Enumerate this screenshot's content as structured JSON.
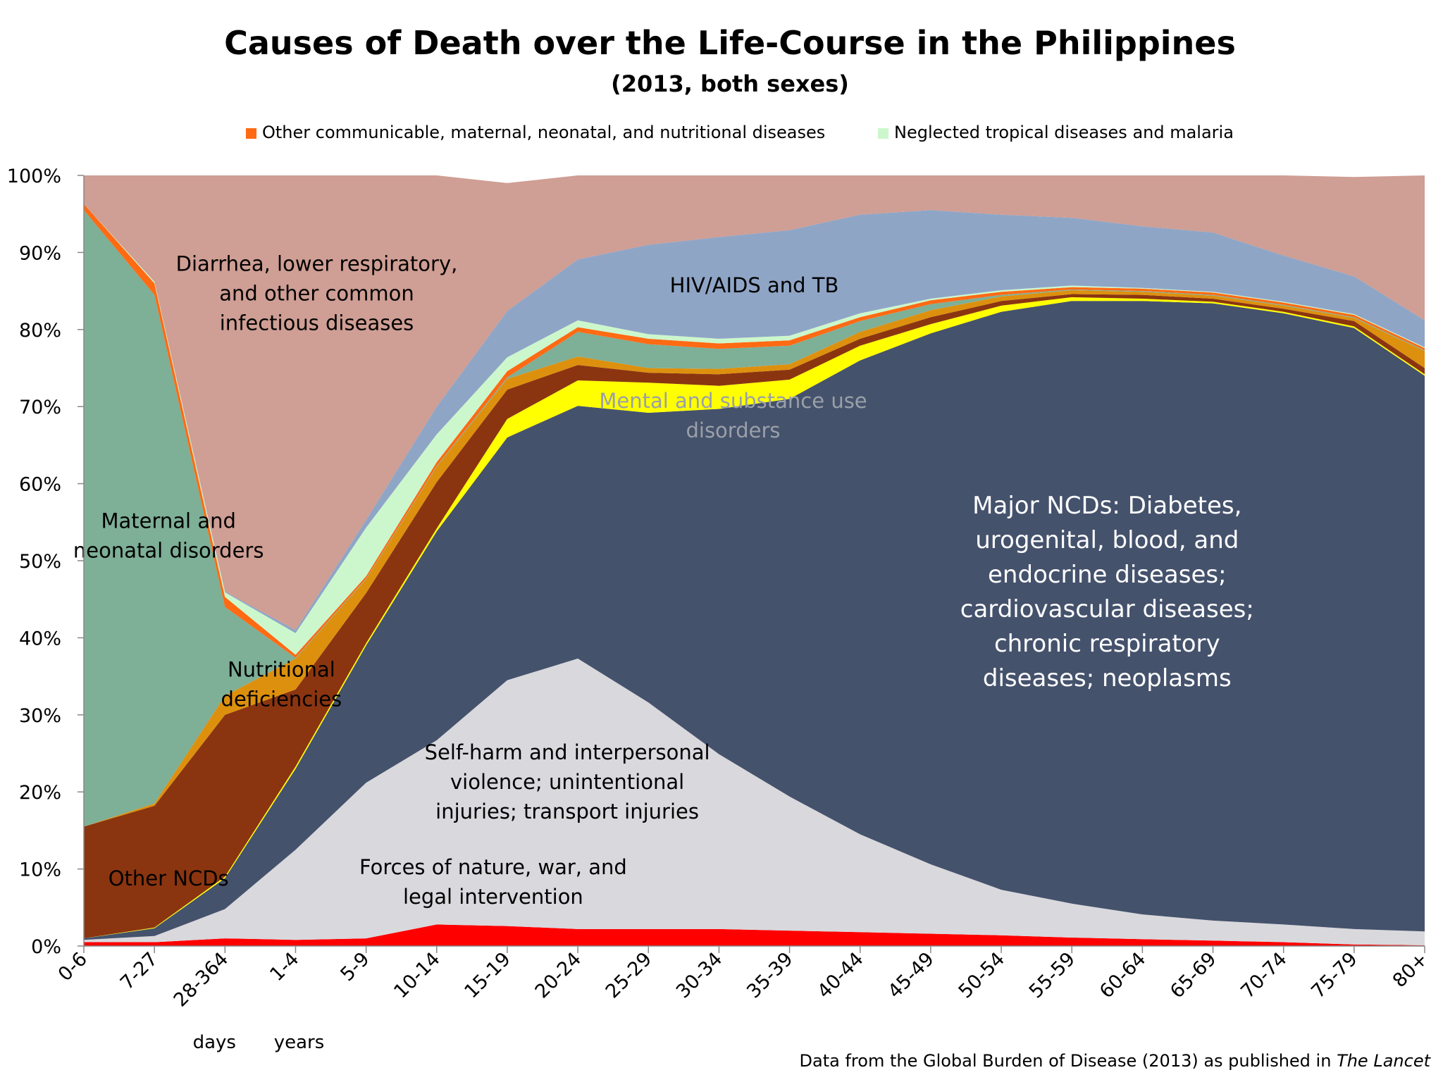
{
  "chart_data": {
    "type": "area",
    "stacked": true,
    "normalized": true,
    "title": "Causes of Death over the Life-Course in the Philippines",
    "subtitle": "(2013, both sexes)",
    "source_prefix": "Data from the Global Burden of Disease (2013) as published in ",
    "source_italic": "The Lancet",
    "categories": [
      "0-6",
      "7-27",
      "28-364",
      "1-4",
      "5-9",
      "10-14",
      "15-19",
      "20-24",
      "25-29",
      "30-34",
      "35-39",
      "40-44",
      "45-49",
      "50-54",
      "55-59",
      "60-64",
      "65-69",
      "70-74",
      "75-79",
      "80+"
    ],
    "category_notes": [
      {
        "text": "days",
        "category": "28-364"
      },
      {
        "text": "years",
        "category": "1-4"
      }
    ],
    "y_ticks": [
      "0%",
      "10%",
      "20%",
      "30%",
      "40%",
      "50%",
      "60%",
      "70%",
      "80%",
      "90%",
      "100%"
    ],
    "ylim": [
      0,
      100
    ],
    "legend": [
      {
        "label": "Other communicable, maternal, neonatal, and nutritional diseases",
        "color": "#ff6a13"
      },
      {
        "label": "Neglected tropical diseases and malaria",
        "color": "#ccf7cc"
      }
    ],
    "series": [
      {
        "key": "forces",
        "color": "#ff0000",
        "values": [
          0.5,
          0.5,
          1.0,
          0.8,
          1.0,
          2.8,
          2.6,
          2.2,
          2.2,
          2.2,
          2.0,
          1.8,
          1.6,
          1.4,
          1.1,
          0.9,
          0.7,
          0.5,
          0.2,
          0.1
        ]
      },
      {
        "key": "injuries",
        "color": "#d9d8dc",
        "values": [
          0.3,
          0.8,
          3.8,
          11.7,
          20.2,
          23.9,
          31.9,
          35.1,
          29.4,
          22.7,
          17.4,
          12.7,
          9.0,
          5.9,
          4.4,
          3.2,
          2.6,
          2.3,
          2.0,
          1.8
        ]
      },
      {
        "key": "major_ncds",
        "color": "#45526c",
        "values": [
          0.2,
          1.0,
          4.0,
          10.5,
          17.8,
          27.1,
          31.5,
          32.8,
          37.6,
          44.8,
          51.6,
          61.5,
          68.9,
          75.0,
          78.2,
          79.6,
          80.1,
          79.3,
          78.0,
          72.1
        ]
      },
      {
        "key": "mental",
        "color": "#ffff00",
        "values": [
          0.0,
          0.1,
          0.2,
          0.3,
          0.3,
          0.4,
          2.4,
          3.3,
          3.9,
          3.0,
          2.5,
          1.9,
          1.2,
          0.8,
          0.5,
          0.3,
          0.2,
          0.2,
          0.2,
          0.2
        ]
      },
      {
        "key": "other_ncds",
        "color": "#8b3510",
        "values": [
          14.5,
          15.8,
          21.0,
          10.0,
          6.5,
          6.0,
          3.8,
          2.0,
          1.3,
          1.5,
          1.3,
          0.9,
          0.9,
          0.6,
          0.4,
          0.5,
          0.4,
          0.4,
          0.7,
          0.8
        ]
      },
      {
        "key": "nutritional",
        "color": "#dd900e",
        "values": [
          0.0,
          0.3,
          2.5,
          4.0,
          1.8,
          2.0,
          1.4,
          1.1,
          0.6,
          0.7,
          0.7,
          0.9,
          0.9,
          0.6,
          0.5,
          0.4,
          0.4,
          0.4,
          0.4,
          2.2
        ]
      },
      {
        "key": "maternal",
        "color": "#7eaf97",
        "values": [
          80.0,
          66.0,
          11.5,
          0.1,
          0.1,
          0.1,
          0.2,
          3.2,
          3.1,
          2.6,
          2.4,
          1.4,
          0.8,
          0.2,
          0.1,
          0.1,
          0.1,
          0.1,
          0.1,
          0.1
        ]
      },
      {
        "key": "other_comm",
        "color": "#ff6a13",
        "values": [
          0.8,
          1.5,
          1.3,
          0.4,
          0.3,
          0.5,
          0.8,
          0.6,
          0.7,
          0.7,
          0.7,
          0.5,
          0.5,
          0.4,
          0.3,
          0.3,
          0.3,
          0.3,
          0.3,
          0.3
        ]
      },
      {
        "key": "ntd",
        "color": "#ccf7cc",
        "values": [
          0.0,
          0.2,
          0.6,
          2.8,
          6.3,
          3.6,
          1.8,
          0.9,
          0.6,
          0.6,
          0.6,
          0.5,
          0.2,
          0.2,
          0.2,
          0.1,
          0.1,
          0.1,
          0.1,
          0.1
        ]
      },
      {
        "key": "hiv_tb",
        "color": "#8fa5c6",
        "values": [
          0.0,
          0.0,
          0.1,
          0.4,
          1.0,
          3.6,
          6.0,
          7.9,
          11.6,
          13.2,
          13.7,
          12.8,
          11.5,
          9.8,
          8.8,
          8.0,
          7.7,
          6.0,
          4.9,
          3.5
        ]
      },
      {
        "key": "diarrhea",
        "color": "#cf9e94",
        "values": [
          3.7,
          13.8,
          54.0,
          59.0,
          44.7,
          30.0,
          16.6,
          10.9,
          9.0,
          8.0,
          7.1,
          5.1,
          4.5,
          5.1,
          5.5,
          6.6,
          7.4,
          10.4,
          12.9,
          18.8
        ]
      }
    ],
    "annotations": [
      {
        "key": "diarrhea",
        "lines": [
          "Diarrhea, lower respiratory,",
          "and other common",
          "infectious diseases"
        ],
        "color": "#000000"
      },
      {
        "key": "hiv_tb",
        "lines": [
          "HIV/AIDS and TB"
        ],
        "color": "#000000"
      },
      {
        "key": "mental",
        "lines": [
          "Mental and substance use",
          "disorders"
        ],
        "color": "#9aa0a8"
      },
      {
        "key": "major_ncds",
        "lines": [
          "Major NCDs: Diabetes,",
          "urogenital, blood, and",
          "endocrine diseases;",
          "cardiovascular diseases;",
          "chronic respiratory",
          "diseases; neoplasms"
        ],
        "color": "#ffffff"
      },
      {
        "key": "maternal",
        "lines": [
          "Maternal and",
          "neonatal disorders"
        ],
        "color": "#000000"
      },
      {
        "key": "nutritional",
        "lines": [
          "Nutritional",
          "deficiencies"
        ],
        "color": "#000000"
      },
      {
        "key": "other_ncds",
        "lines": [
          "Other NCDs"
        ],
        "color": "#000000"
      },
      {
        "key": "injuries",
        "lines": [
          "Self-harm and interpersonal",
          "violence; unintentional",
          "injuries; transport injuries"
        ],
        "color": "#000000"
      },
      {
        "key": "forces",
        "lines": [
          "Forces of nature, war, and",
          "legal intervention"
        ],
        "color": "#000000"
      }
    ]
  }
}
